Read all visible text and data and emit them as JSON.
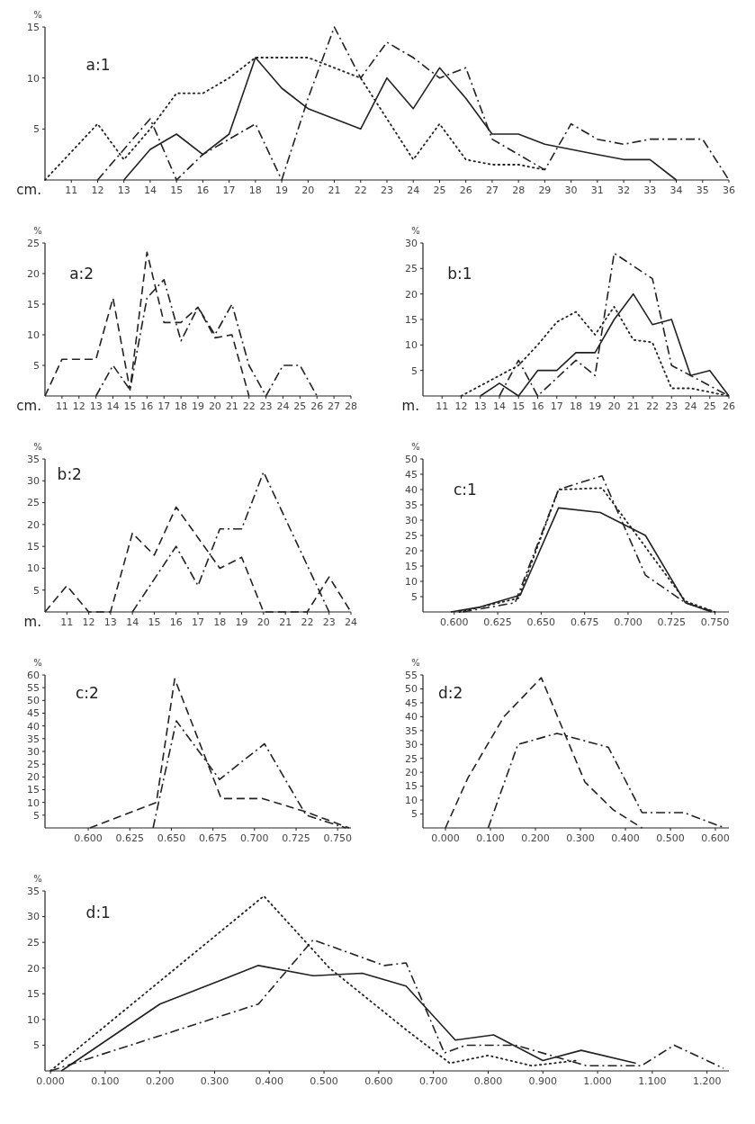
{
  "chart_data": [
    {
      "type": "line",
      "title": "a:1",
      "xlabel": "cm.",
      "ylabel": "%",
      "xlim": [
        10,
        36
      ],
      "xticks": [
        11,
        12,
        13,
        14,
        15,
        16,
        17,
        18,
        19,
        20,
        21,
        22,
        23,
        24,
        25,
        26,
        27,
        28,
        29,
        30,
        31,
        32,
        33,
        34,
        35,
        36
      ],
      "ylim": [
        0,
        15
      ],
      "yticks": [
        5,
        10,
        15
      ],
      "series": [
        {
          "color": "#222222",
          "line_style": "solid",
          "x": [
            13,
            14,
            15,
            16,
            17,
            18,
            19,
            20,
            21,
            22,
            23,
            24,
            25,
            26,
            27,
            28,
            29,
            30,
            31,
            32,
            33,
            34
          ],
          "values": [
            0,
            3,
            4.5,
            2.5,
            4.5,
            12,
            9,
            7,
            6,
            5,
            10,
            7,
            11,
            8,
            4.5,
            4.5,
            3.5,
            3,
            2.5,
            2,
            2,
            0
          ]
        },
        {
          "color": "#222222",
          "line_style": "dotted",
          "x": [
            10,
            12,
            13,
            14,
            15,
            16,
            17,
            18,
            19,
            20,
            21,
            22,
            23,
            24,
            25,
            26,
            27,
            28,
            29
          ],
          "values": [
            0,
            5.5,
            2,
            5,
            8.5,
            8.5,
            10,
            12,
            12,
            12,
            11,
            10,
            6,
            2,
            5.5,
            2,
            1.5,
            1.5,
            1
          ]
        },
        {
          "color": "#222222",
          "line_style": "dashdot",
          "x": [
            12,
            13,
            14,
            15,
            16,
            17,
            18,
            19,
            20,
            21,
            22,
            23,
            24,
            25,
            26,
            27,
            28,
            29,
            30,
            31,
            32,
            33,
            34,
            35,
            36
          ],
          "values": [
            0,
            3,
            6,
            0,
            2.5,
            4,
            5.5,
            0,
            8,
            15,
            10,
            13.5,
            12,
            10,
            11,
            4,
            2.5,
            1,
            5.5,
            4,
            3.5,
            4,
            4,
            4,
            0
          ]
        }
      ]
    },
    {
      "type": "line",
      "title": "a:2",
      "xlabel": "cm.",
      "ylabel": "%",
      "xlim": [
        10,
        28
      ],
      "xticks": [
        11,
        12,
        13,
        14,
        15,
        16,
        17,
        18,
        19,
        20,
        21,
        22,
        23,
        24,
        25,
        26,
        27,
        28
      ],
      "ylim": [
        0,
        25
      ],
      "yticks": [
        5,
        10,
        15,
        20,
        25
      ],
      "series": [
        {
          "color": "#222222",
          "line_style": "dashed",
          "x": [
            10,
            11,
            12,
            13,
            14,
            15,
            16,
            17,
            18,
            19,
            20,
            21,
            22
          ],
          "values": [
            0,
            6,
            6,
            6,
            16,
            1,
            23.5,
            12,
            12,
            14.5,
            9.5,
            10,
            0
          ]
        },
        {
          "color": "#222222",
          "line_style": "dashdot",
          "x": [
            13,
            14,
            15,
            16,
            17,
            18,
            19,
            20,
            21,
            22,
            23,
            24,
            25,
            26
          ],
          "values": [
            0,
            5,
            1,
            16,
            19,
            9,
            14.5,
            10,
            15,
            5,
            0,
            5,
            5,
            0
          ]
        }
      ]
    },
    {
      "type": "line",
      "title": "b:1",
      "xlabel": "m.",
      "ylabel": "%",
      "xlim": [
        10,
        26
      ],
      "xticks": [
        11,
        12,
        13,
        14,
        15,
        16,
        17,
        18,
        19,
        20,
        21,
        22,
        23,
        24,
        25,
        26
      ],
      "ylim": [
        0,
        30
      ],
      "yticks": [
        5,
        10,
        15,
        20,
        25,
        30
      ],
      "series": [
        {
          "color": "#222222",
          "line_style": "solid",
          "x": [
            13,
            14,
            15,
            16,
            17,
            18,
            19,
            20,
            21,
            22,
            23,
            24,
            25,
            26
          ],
          "values": [
            0,
            2.5,
            0,
            5,
            5,
            8.5,
            8.5,
            15,
            20,
            14,
            15,
            4,
            5,
            0
          ]
        },
        {
          "color": "#222222",
          "line_style": "dotted",
          "x": [
            12,
            14,
            15,
            16,
            17,
            18,
            19,
            20,
            21,
            22,
            23,
            24,
            26
          ],
          "values": [
            0,
            4,
            6,
            10,
            14.5,
            16.5,
            12,
            17.5,
            11,
            10.5,
            1.5,
            1.5,
            0
          ]
        },
        {
          "color": "#222222",
          "line_style": "dashdot",
          "x": [
            14,
            15,
            16,
            18,
            19,
            20,
            22,
            23,
            24,
            26
          ],
          "values": [
            0,
            7,
            0,
            7,
            4,
            28,
            23,
            6,
            4,
            0
          ]
        }
      ]
    },
    {
      "type": "line",
      "title": "b:2",
      "xlabel": "m.",
      "ylabel": "%",
      "xlim": [
        10,
        24
      ],
      "xticks": [
        11,
        12,
        13,
        14,
        15,
        16,
        17,
        18,
        19,
        20,
        21,
        22,
        23,
        24
      ],
      "ylim": [
        0,
        35
      ],
      "yticks": [
        5,
        10,
        15,
        20,
        25,
        30,
        35
      ],
      "series": [
        {
          "color": "#222222",
          "line_style": "dashed",
          "x": [
            10,
            11,
            12,
            13,
            14,
            15,
            16,
            17,
            18,
            19,
            20,
            22,
            23,
            24
          ],
          "values": [
            0,
            6,
            0,
            0,
            18,
            13,
            24,
            17,
            10,
            12.5,
            0,
            0,
            8,
            0
          ]
        },
        {
          "color": "#222222",
          "line_style": "dashdot",
          "x": [
            14,
            15,
            16,
            17,
            18,
            19,
            20,
            23
          ],
          "values": [
            0,
            7.5,
            15,
            6,
            19,
            19,
            32,
            0
          ]
        }
      ]
    },
    {
      "type": "line",
      "title": "c:1",
      "ylabel": "%",
      "xlim": [
        0.582,
        0.758
      ],
      "xticks": [
        {
          "value": 0.6,
          "label": "0.600"
        },
        {
          "value": 0.625,
          "label": "0.625"
        },
        {
          "value": 0.65,
          "label": "0.650"
        },
        {
          "value": 0.675,
          "label": "0.675"
        },
        {
          "value": 0.7,
          "label": "0.700"
        },
        {
          "value": 0.725,
          "label": "0.725"
        },
        {
          "value": 0.75,
          "label": "0.750"
        }
      ],
      "ylim": [
        0,
        50
      ],
      "yticks": [
        5,
        10,
        15,
        20,
        25,
        30,
        35,
        40,
        45,
        50
      ],
      "series": [
        {
          "color": "#222222",
          "line_style": "solid",
          "x": [
            0.598,
            0.614,
            0.638,
            0.66,
            0.684,
            0.71,
            0.733,
            0.748
          ],
          "values": [
            0,
            1.5,
            5.5,
            34,
            32.5,
            25,
            3,
            0
          ]
        },
        {
          "color": "#222222",
          "line_style": "dotted",
          "x": [
            0.603,
            0.637,
            0.66,
            0.685,
            0.733,
            0.75
          ],
          "values": [
            0,
            4.5,
            40,
            40.5,
            3.5,
            0
          ]
        },
        {
          "color": "#222222",
          "line_style": "dashdot",
          "x": [
            0.605,
            0.635,
            0.66,
            0.685,
            0.71,
            0.733,
            0.75
          ],
          "values": [
            0,
            3,
            40,
            44.5,
            12,
            3,
            0
          ]
        }
      ]
    },
    {
      "type": "line",
      "title": "c:2",
      "ylabel": "%",
      "xlim": [
        0.574,
        0.758
      ],
      "xticks": [
        {
          "value": 0.6,
          "label": "0.600"
        },
        {
          "value": 0.625,
          "label": "0.625"
        },
        {
          "value": 0.65,
          "label": "0.650"
        },
        {
          "value": 0.675,
          "label": "0.675"
        },
        {
          "value": 0.7,
          "label": "0.700"
        },
        {
          "value": 0.725,
          "label": "0.725"
        },
        {
          "value": 0.75,
          "label": "0.750"
        }
      ],
      "ylim": [
        0,
        60
      ],
      "yticks": [
        5,
        10,
        15,
        20,
        25,
        30,
        35,
        40,
        45,
        50,
        55,
        60
      ],
      "series": [
        {
          "color": "#222222",
          "line_style": "dashed",
          "x": [
            0.601,
            0.641,
            0.652,
            0.68,
            0.705,
            0.73,
            0.757
          ],
          "values": [
            0,
            10,
            58.5,
            11.5,
            11.5,
            6.5,
            0
          ]
        },
        {
          "color": "#222222",
          "line_style": "dashdot",
          "x": [
            0.639,
            0.653,
            0.679,
            0.706,
            0.731,
            0.755
          ],
          "values": [
            0,
            42,
            19,
            33,
            5,
            0
          ]
        }
      ]
    },
    {
      "type": "line",
      "title": "d:1",
      "ylabel": "%",
      "xlim": [
        -0.01,
        1.24
      ],
      "xticks": [
        {
          "value": 0,
          "label": "0.000"
        },
        {
          "value": 0.1,
          "label": "0.100"
        },
        {
          "value": 0.2,
          "label": "0.200"
        },
        {
          "value": 0.3,
          "label": "0.300"
        },
        {
          "value": 0.4,
          "label": "0.400"
        },
        {
          "value": 0.5,
          "label": "0.500"
        },
        {
          "value": 0.6,
          "label": "0.600"
        },
        {
          "value": 0.7,
          "label": "0.700"
        },
        {
          "value": 0.8,
          "label": "0.800"
        },
        {
          "value": 0.9,
          "label": "0.900"
        },
        {
          "value": 1.0,
          "label": "1.000"
        },
        {
          "value": 1.1,
          "label": "1.100"
        },
        {
          "value": 1.2,
          "label": "1.200"
        }
      ],
      "ylim": [
        0,
        35
      ],
      "yticks": [
        5,
        10,
        15,
        20,
        25,
        30,
        35
      ],
      "series": [
        {
          "color": "#222222",
          "line_style": "solid",
          "x": [
            0.02,
            0.2,
            0.38,
            0.48,
            0.57,
            0.65,
            0.74,
            0.81,
            0.9,
            0.97,
            1.07
          ],
          "values": [
            0,
            13,
            20.5,
            18.5,
            19,
            16.5,
            6,
            7,
            2,
            4,
            1.5
          ]
        },
        {
          "color": "#222222",
          "line_style": "dotted",
          "x": [
            0,
            0.39,
            0.51,
            0.65,
            0.73,
            0.8,
            0.88,
            0.96
          ],
          "values": [
            0,
            34,
            20,
            8,
            1.5,
            3,
            1,
            2
          ]
        },
        {
          "color": "#222222",
          "line_style": "dashdot",
          "x": [
            0,
            0.38,
            0.48,
            0.61,
            0.65,
            0.72,
            0.76,
            0.85,
            0.98,
            1.08,
            1.14,
            1.23
          ],
          "values": [
            0,
            13,
            25.5,
            20.5,
            21,
            3.5,
            5,
            5,
            1,
            1,
            5,
            0.5
          ]
        }
      ]
    },
    {
      "type": "line",
      "title": "d:2",
      "ylabel": "%",
      "xlim": [
        -0.05,
        0.63
      ],
      "xticks": [
        {
          "value": 0,
          "label": "0.000"
        },
        {
          "value": 0.1,
          "label": "0.100"
        },
        {
          "value": 0.2,
          "label": "0.200"
        },
        {
          "value": 0.3,
          "label": "0.300"
        },
        {
          "value": 0.4,
          "label": "0.400"
        },
        {
          "value": 0.5,
          "label": "0.500"
        },
        {
          "value": 0.6,
          "label": "0.600"
        }
      ],
      "ylim": [
        0,
        55
      ],
      "yticks": [
        5,
        10,
        15,
        20,
        25,
        30,
        35,
        40,
        45,
        50,
        55
      ],
      "series": [
        {
          "color": "#222222",
          "line_style": "dashed",
          "x": [
            0,
            0.05,
            0.13,
            0.213,
            0.31,
            0.373,
            0.437
          ],
          "values": [
            0,
            18,
            40,
            54,
            16.5,
            6.5,
            0
          ]
        },
        {
          "color": "#222222",
          "line_style": "dashdot",
          "x": [
            0.095,
            0.161,
            0.248,
            0.362,
            0.437,
            0.53,
            0.621
          ],
          "values": [
            0,
            30,
            34,
            29,
            5.5,
            5.5,
            0
          ]
        }
      ]
    }
  ]
}
